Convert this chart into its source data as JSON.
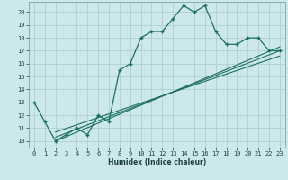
{
  "main_x": [
    0,
    1,
    2,
    3,
    4,
    5,
    6,
    7,
    8,
    9,
    10,
    11,
    12,
    13,
    14,
    15,
    16,
    17,
    18,
    19,
    20,
    21,
    22,
    23
  ],
  "main_y": [
    13,
    11.5,
    10,
    10.5,
    11,
    10.5,
    12,
    11.5,
    15.5,
    16,
    18,
    18.5,
    18.5,
    19.5,
    20.5,
    20,
    20.5,
    18.5,
    17.5,
    17.5,
    18,
    18,
    17,
    17
  ],
  "line1_x": [
    2,
    23
  ],
  "line1_y": [
    10,
    17.3
  ],
  "line2_x": [
    2,
    23
  ],
  "line2_y": [
    10.3,
    17.0
  ],
  "line3_x": [
    2,
    23
  ],
  "line3_y": [
    10.7,
    16.6
  ],
  "bg_color": "#cde8ea",
  "grid_color": "#b0cfd2",
  "line_color": "#1a7060",
  "xlabel": "Humidex (Indice chaleur)",
  "xlim": [
    -0.5,
    23.5
  ],
  "ylim": [
    9.5,
    20.8
  ],
  "yticks": [
    10,
    11,
    12,
    13,
    14,
    15,
    16,
    17,
    18,
    19,
    20
  ],
  "xticks": [
    0,
    1,
    2,
    3,
    4,
    5,
    6,
    7,
    8,
    9,
    10,
    11,
    12,
    13,
    14,
    15,
    16,
    17,
    18,
    19,
    20,
    21,
    22,
    23
  ]
}
